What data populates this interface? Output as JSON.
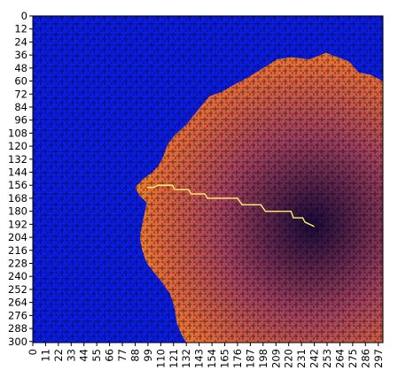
{
  "chart_data": {
    "type": "heatmap",
    "title": "",
    "xlabel": "",
    "ylabel": "",
    "xlim": [
      0,
      301
    ],
    "ylim": [
      301,
      0
    ],
    "grid": false,
    "legend": "none",
    "x_ticks": [
      "0",
      "11",
      "22",
      "33",
      "44",
      "55",
      "66",
      "77",
      "88",
      "99",
      "110",
      "121",
      "132",
      "143",
      "154",
      "165",
      "176",
      "187",
      "198",
      "209",
      "220",
      "231",
      "242",
      "253",
      "264",
      "275",
      "286",
      "297"
    ],
    "y_ticks": [
      "0",
      "12",
      "24",
      "36",
      "48",
      "60",
      "72",
      "84",
      "96",
      "108",
      "120",
      "132",
      "144",
      "156",
      "168",
      "180",
      "192",
      "204",
      "216",
      "228",
      "240",
      "252",
      "264",
      "276",
      "288",
      "300"
    ],
    "colors": {
      "wall": "#000000",
      "unexplored": "#0a1ce0",
      "near_goal": "#1a0a3a",
      "far_from_goal": "#f59d1c",
      "path": "#fff36a"
    },
    "goal": [
      240,
      192
    ],
    "explored_boundary": [
      [
        88,
        158
      ],
      [
        95,
        150
      ],
      [
        103,
        144
      ],
      [
        108,
        138
      ],
      [
        112,
        130
      ],
      [
        116,
        118
      ],
      [
        122,
        110
      ],
      [
        132,
        100
      ],
      [
        138,
        92
      ],
      [
        144,
        84
      ],
      [
        152,
        74
      ],
      [
        162,
        70
      ],
      [
        172,
        64
      ],
      [
        186,
        56
      ],
      [
        198,
        48
      ],
      [
        210,
        40
      ],
      [
        222,
        38
      ],
      [
        238,
        40
      ],
      [
        252,
        34
      ],
      [
        262,
        38
      ],
      [
        272,
        42
      ],
      [
        280,
        52
      ],
      [
        290,
        54
      ],
      [
        301,
        60
      ],
      [
        301,
        301
      ],
      [
        132,
        301
      ],
      [
        128,
        294
      ],
      [
        124,
        284
      ],
      [
        122,
        270
      ],
      [
        118,
        256
      ],
      [
        110,
        244
      ],
      [
        104,
        236
      ],
      [
        98,
        228
      ],
      [
        94,
        216
      ],
      [
        92,
        204
      ],
      [
        94,
        192
      ],
      [
        96,
        182
      ],
      [
        98,
        172
      ],
      [
        92,
        166
      ]
    ],
    "path": [
      [
        98,
        158
      ],
      [
        104,
        158
      ],
      [
        108,
        156
      ],
      [
        120,
        156
      ],
      [
        122,
        160
      ],
      [
        134,
        160
      ],
      [
        136,
        164
      ],
      [
        148,
        164
      ],
      [
        150,
        168
      ],
      [
        176,
        168
      ],
      [
        180,
        174
      ],
      [
        196,
        174
      ],
      [
        200,
        180
      ],
      [
        222,
        180
      ],
      [
        224,
        186
      ],
      [
        232,
        186
      ],
      [
        234,
        190
      ],
      [
        242,
        194
      ]
    ]
  }
}
